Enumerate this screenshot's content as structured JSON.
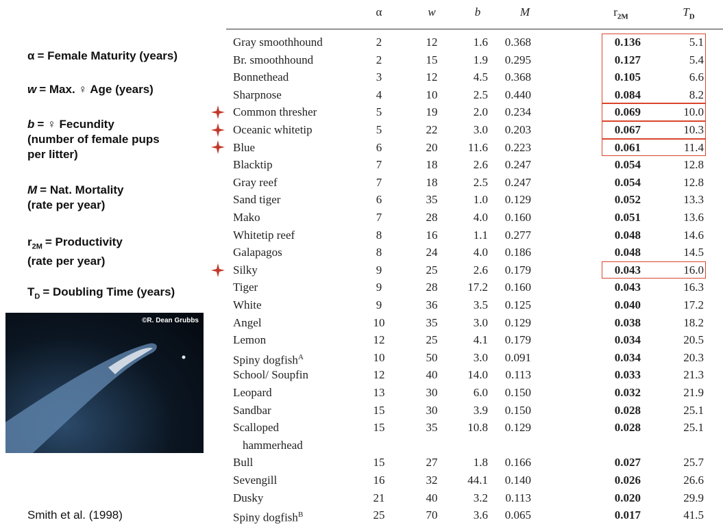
{
  "legend": [
    {
      "symbol": "α",
      "lines": [
        "= Female Maturity (years)"
      ]
    },
    {
      "symbol": "w",
      "italic": true,
      "lines": [
        "= Max. ♀ Age (years)"
      ]
    },
    {
      "symbol": "b",
      "italic": true,
      "lines": [
        "= ♀ Fecundity",
        "(number of female pups",
        "per litter)"
      ]
    },
    {
      "symbol": "M",
      "italic": true,
      "lines": [
        "= Nat. Mortality",
        "(rate per year)"
      ]
    },
    {
      "symbol": "r",
      "sub": "2M",
      "lines": [
        "= Productivity",
        "(rate per year)"
      ]
    },
    {
      "symbol": "T",
      "sub": "D",
      "lines": [
        "=  Doubling Time (years)"
      ]
    }
  ],
  "photo_credit": "©R. Dean Grubbs",
  "citation": "Smith et al. (1998)",
  "table": {
    "headers": [
      {
        "text": "α"
      },
      {
        "text": "w",
        "italic": true
      },
      {
        "text": "b",
        "italic": true
      },
      {
        "text": "M",
        "italic": true
      },
      {
        "text": "r",
        "sub": "2M"
      },
      {
        "text": "T",
        "sub": "D",
        "italic": true
      }
    ],
    "rows": [
      {
        "name": "Gray smoothhound",
        "cells": [
          "2",
          "12",
          "1.6",
          "0.368",
          "0.136",
          "5.1"
        ]
      },
      {
        "name": "Br. smoothhound",
        "cells": [
          "2",
          "15",
          "1.9",
          "0.295",
          "0.127",
          "5.4"
        ]
      },
      {
        "name": "Bonnethead",
        "cells": [
          "3",
          "12",
          "4.5",
          "0.368",
          "0.105",
          "6.6"
        ]
      },
      {
        "name": "Sharpnose",
        "cells": [
          "4",
          "10",
          "2.5",
          "0.440",
          "0.084",
          "8.2"
        ]
      },
      {
        "name": "Common thresher",
        "starred": true,
        "cells": [
          "5",
          "19",
          "2.0",
          "0.234",
          "0.069",
          "10.0"
        ]
      },
      {
        "name": "Oceanic whitetip",
        "starred": true,
        "cells": [
          "5",
          "22",
          "3.0",
          "0.203",
          "0.067",
          "10.3"
        ]
      },
      {
        "name": "Blue",
        "starred": true,
        "cells": [
          "6",
          "20",
          "11.6",
          "0.223",
          "0.061",
          "11.4"
        ]
      },
      {
        "name": "Blacktip",
        "cells": [
          "7",
          "18",
          "2.6",
          "0.247",
          "0.054",
          "12.8"
        ]
      },
      {
        "name": "Gray reef",
        "cells": [
          "7",
          "18",
          "2.5",
          "0.247",
          "0.054",
          "12.8"
        ]
      },
      {
        "name": "Sand tiger",
        "cells": [
          "6",
          "35",
          "1.0",
          "0.129",
          "0.052",
          "13.3"
        ]
      },
      {
        "name": "Mako",
        "cells": [
          "7",
          "28",
          "4.0",
          "0.160",
          "0.051",
          "13.6"
        ]
      },
      {
        "name": "Whitetip reef",
        "cells": [
          "8",
          "16",
          "1.1",
          "0.277",
          "0.048",
          "14.6"
        ]
      },
      {
        "name": "Galapagos",
        "cells": [
          "8",
          "24",
          "4.0",
          "0.186",
          "0.048",
          "14.5"
        ]
      },
      {
        "name": "Silky",
        "starred": true,
        "cells": [
          "9",
          "25",
          "2.6",
          "0.179",
          "0.043",
          "16.0"
        ]
      },
      {
        "name": "Tiger",
        "cells": [
          "9",
          "28",
          "17.2",
          "0.160",
          "0.043",
          "16.3"
        ]
      },
      {
        "name": "White",
        "cells": [
          "9",
          "36",
          "3.5",
          "0.125",
          "0.040",
          "17.2"
        ]
      },
      {
        "name": "Angel",
        "cells": [
          "10",
          "35",
          "3.0",
          "0.129",
          "0.038",
          "18.2"
        ]
      },
      {
        "name": "Lemon",
        "cells": [
          "12",
          "25",
          "4.1",
          "0.179",
          "0.034",
          "20.5"
        ]
      },
      {
        "name": "Spiny dogfish",
        "sup": "A",
        "cells": [
          "10",
          "50",
          "3.0",
          "0.091",
          "0.034",
          "20.3"
        ]
      },
      {
        "name": "School/ Soupfin",
        "cells": [
          "12",
          "40",
          "14.0",
          "0.113",
          "0.033",
          "21.3"
        ]
      },
      {
        "name": "Leopard",
        "cells": [
          "13",
          "30",
          "6.0",
          "0.150",
          "0.032",
          "21.9"
        ]
      },
      {
        "name": "Sandbar",
        "cells": [
          "15",
          "30",
          "3.9",
          "0.150",
          "0.028",
          "25.1"
        ]
      },
      {
        "name": "Scalloped",
        "name_cont": "hammerhead",
        "cells": [
          "15",
          "35",
          "10.8",
          "0.129",
          "0.028",
          "25.1"
        ]
      },
      {
        "name": "Bull",
        "cells": [
          "15",
          "27",
          "1.8",
          "0.166",
          "0.027",
          "25.7"
        ]
      },
      {
        "name": "Sevengill",
        "cells": [
          "16",
          "32",
          "44.1",
          "0.140",
          "0.026",
          "26.6"
        ]
      },
      {
        "name": "Dusky",
        "cells": [
          "21",
          "40",
          "3.2",
          "0.113",
          "0.020",
          "29.9"
        ]
      },
      {
        "name": "Spiny dogfish",
        "sup": "B",
        "cells": [
          "25",
          "70",
          "3.6",
          "0.065",
          "0.017",
          "41.5"
        ]
      }
    ],
    "boxed_row_groups": [
      [
        0,
        3
      ],
      [
        4,
        4
      ],
      [
        5,
        5
      ],
      [
        6,
        6
      ],
      [
        13,
        13
      ]
    ]
  }
}
